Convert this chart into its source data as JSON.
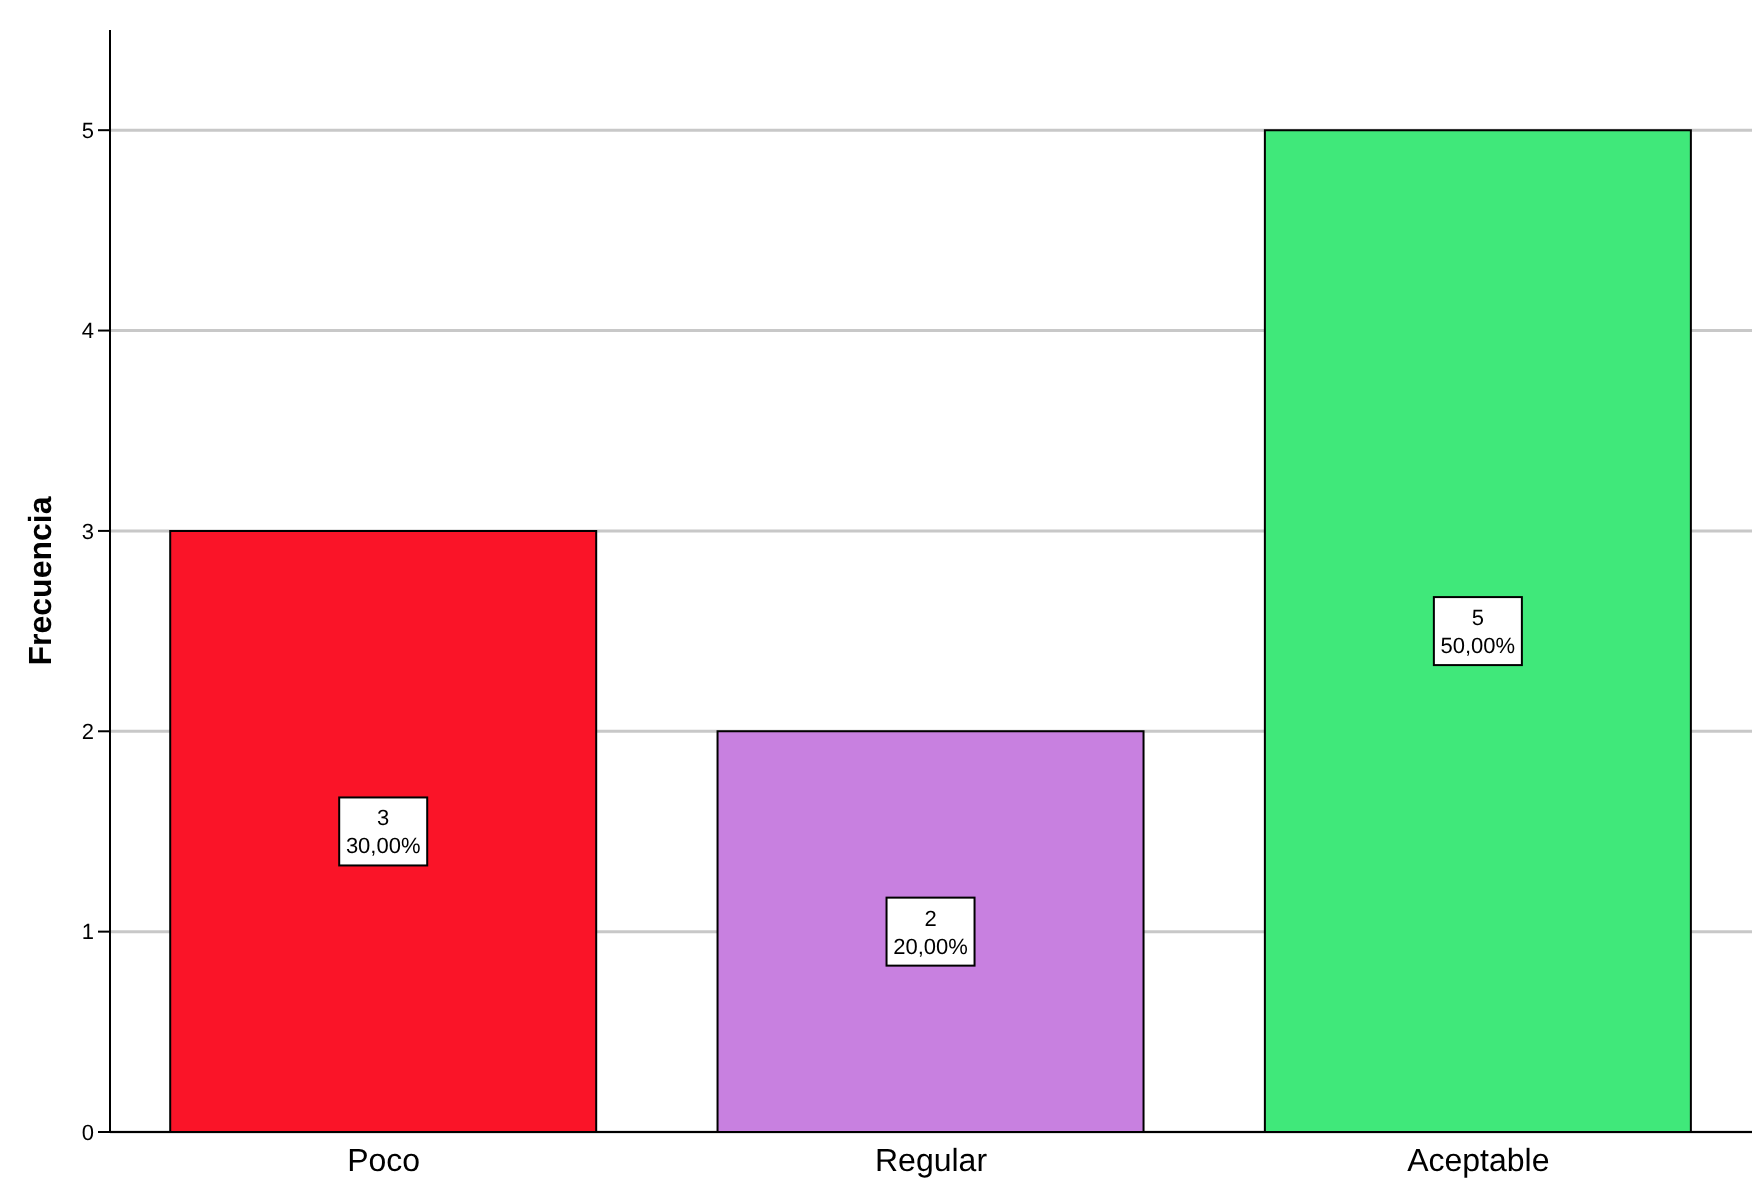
{
  "chart_data": {
    "type": "bar",
    "ylabel": "Frecuencia",
    "categories": [
      "Poco",
      "Regular",
      "Aceptable"
    ],
    "values": [
      3,
      2,
      5
    ],
    "colors": [
      "#fa1428",
      "#c880e0",
      "#40e87a"
    ],
    "value_labels": [
      "3\n30,00%",
      "2\n20,00%",
      "5\n50,00%"
    ],
    "ylim": [
      0,
      5.5
    ],
    "yticks": [
      0,
      1,
      2,
      3,
      4,
      5
    ],
    "grid": "y"
  }
}
